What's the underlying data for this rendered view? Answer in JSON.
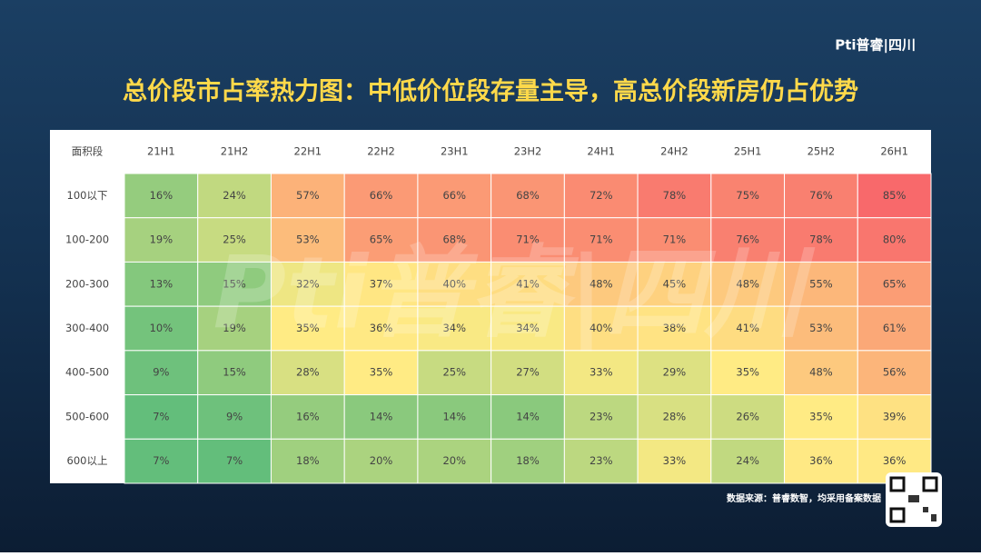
{
  "chart_data": {
    "type": "heatmap",
    "title": "总价段市占率热力图：中低价位段存量主导，高总价段新房仍占优势",
    "logo": "Pti普睿|四川",
    "source": "数据来源：普睿数智，均采用备案数据",
    "corner_label": "面积段",
    "x": [
      "21H1",
      "21H2",
      "22H1",
      "22H2",
      "23H1",
      "23H2",
      "24H1",
      "24H2",
      "25H1",
      "25H2",
      "26H1"
    ],
    "y": [
      "100以下",
      "100-200",
      "200-300",
      "300-400",
      "400-500",
      "500-600",
      "600以上"
    ],
    "values": [
      [
        16,
        24,
        57,
        66,
        66,
        68,
        72,
        78,
        75,
        76,
        85
      ],
      [
        19,
        25,
        53,
        65,
        68,
        71,
        71,
        71,
        76,
        78,
        80
      ],
      [
        13,
        15,
        32,
        37,
        40,
        41,
        48,
        45,
        48,
        55,
        65
      ],
      [
        10,
        19,
        35,
        36,
        34,
        34,
        40,
        38,
        41,
        53,
        61
      ],
      [
        9,
        15,
        28,
        35,
        25,
        27,
        33,
        29,
        35,
        48,
        56
      ],
      [
        7,
        9,
        16,
        14,
        14,
        14,
        23,
        28,
        26,
        35,
        39
      ],
      [
        7,
        7,
        18,
        20,
        20,
        18,
        23,
        33,
        24,
        36,
        36
      ]
    ],
    "value_labels": [
      [
        "16%",
        "24%",
        "57%",
        "66%",
        "66%",
        "68%",
        "72%",
        "78%",
        "75%",
        "76%",
        "85%"
      ],
      [
        "19%",
        "25%",
        "53%",
        "65%",
        "68%",
        "71%",
        "71%",
        "71%",
        "76%",
        "78%",
        "80%"
      ],
      [
        "13%",
        "15%",
        "32%",
        "37%",
        "40%",
        "41%",
        "48%",
        "45%",
        "48%",
        "55%",
        "65%"
      ],
      [
        "10%",
        "19%",
        "35%",
        "36%",
        "34%",
        "34%",
        "40%",
        "38%",
        "41%",
        "53%",
        "61%"
      ],
      [
        "9%",
        "15%",
        "28%",
        "35%",
        "25%",
        "27%",
        "33%",
        "29%",
        "35%",
        "48%",
        "56%"
      ],
      [
        "7%",
        "9%",
        "16%",
        "14%",
        "14%",
        "14%",
        "23%",
        "28%",
        "26%",
        "35%",
        "39%"
      ],
      [
        "7%",
        "7%",
        "18%",
        "20%",
        "20%",
        "18%",
        "23%",
        "33%",
        "24%",
        "36%",
        "36%"
      ]
    ]
  }
}
